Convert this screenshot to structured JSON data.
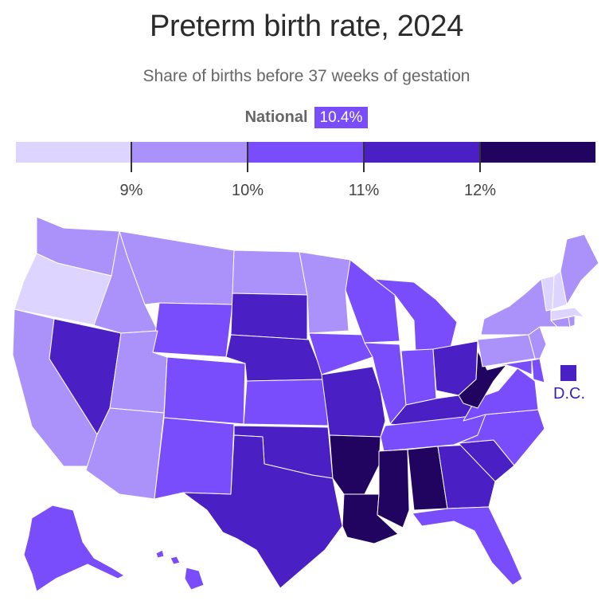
{
  "title": "Preterm birth rate, 2024",
  "subtitle": "Share of births before 37 weeks of gestation",
  "national": {
    "label": "National",
    "value": "10.4%"
  },
  "legend": {
    "colors": [
      "#ddd4ff",
      "#ab92fb",
      "#7a4dfc",
      "#4a1fc4",
      "#21045f"
    ],
    "ticks": [
      "9%",
      "10%",
      "11%",
      "12%"
    ]
  },
  "dc": {
    "label": "D.C.",
    "color": "#4a1fc4"
  },
  "states": [
    {
      "abbr": "WA",
      "rate": "bin2"
    },
    {
      "abbr": "OR",
      "rate": "bin1"
    },
    {
      "abbr": "CA",
      "rate": "bin2"
    },
    {
      "abbr": "NV",
      "rate": "bin4"
    },
    {
      "abbr": "ID",
      "rate": "bin2"
    },
    {
      "abbr": "MT",
      "rate": "bin2"
    },
    {
      "abbr": "WY",
      "rate": "bin3"
    },
    {
      "abbr": "UT",
      "rate": "bin2"
    },
    {
      "abbr": "AZ",
      "rate": "bin2"
    },
    {
      "abbr": "CO",
      "rate": "bin3"
    },
    {
      "abbr": "NM",
      "rate": "bin3"
    },
    {
      "abbr": "ND",
      "rate": "bin2"
    },
    {
      "abbr": "SD",
      "rate": "bin4"
    },
    {
      "abbr": "NE",
      "rate": "bin4"
    },
    {
      "abbr": "KS",
      "rate": "bin3"
    },
    {
      "abbr": "OK",
      "rate": "bin4"
    },
    {
      "abbr": "TX",
      "rate": "bin4"
    },
    {
      "abbr": "MN",
      "rate": "bin2"
    },
    {
      "abbr": "IA",
      "rate": "bin3"
    },
    {
      "abbr": "MO",
      "rate": "bin4"
    },
    {
      "abbr": "AR",
      "rate": "bin5"
    },
    {
      "abbr": "LA",
      "rate": "bin5"
    },
    {
      "abbr": "WI",
      "rate": "bin3"
    },
    {
      "abbr": "IL",
      "rate": "bin3"
    },
    {
      "abbr": "MI",
      "rate": "bin3"
    },
    {
      "abbr": "IN",
      "rate": "bin3"
    },
    {
      "abbr": "OH",
      "rate": "bin4"
    },
    {
      "abbr": "KY",
      "rate": "bin4"
    },
    {
      "abbr": "TN",
      "rate": "bin3"
    },
    {
      "abbr": "MS",
      "rate": "bin5"
    },
    {
      "abbr": "AL",
      "rate": "bin5"
    },
    {
      "abbr": "GA",
      "rate": "bin4"
    },
    {
      "abbr": "FL",
      "rate": "bin3"
    },
    {
      "abbr": "SC",
      "rate": "bin4"
    },
    {
      "abbr": "NC",
      "rate": "bin3"
    },
    {
      "abbr": "VA",
      "rate": "bin3"
    },
    {
      "abbr": "WV",
      "rate": "bin5"
    },
    {
      "abbr": "MD",
      "rate": "bin3"
    },
    {
      "abbr": "DE",
      "rate": "bin3"
    },
    {
      "abbr": "PA",
      "rate": "bin2"
    },
    {
      "abbr": "NJ",
      "rate": "bin2"
    },
    {
      "abbr": "NY",
      "rate": "bin2"
    },
    {
      "abbr": "CT",
      "rate": "bin2"
    },
    {
      "abbr": "RI",
      "rate": "bin2"
    },
    {
      "abbr": "MA",
      "rate": "bin1"
    },
    {
      "abbr": "VT",
      "rate": "bin1"
    },
    {
      "abbr": "NH",
      "rate": "bin1"
    },
    {
      "abbr": "ME",
      "rate": "bin2"
    },
    {
      "abbr": "AK",
      "rate": "bin3"
    },
    {
      "abbr": "HI",
      "rate": "bin3"
    }
  ]
}
